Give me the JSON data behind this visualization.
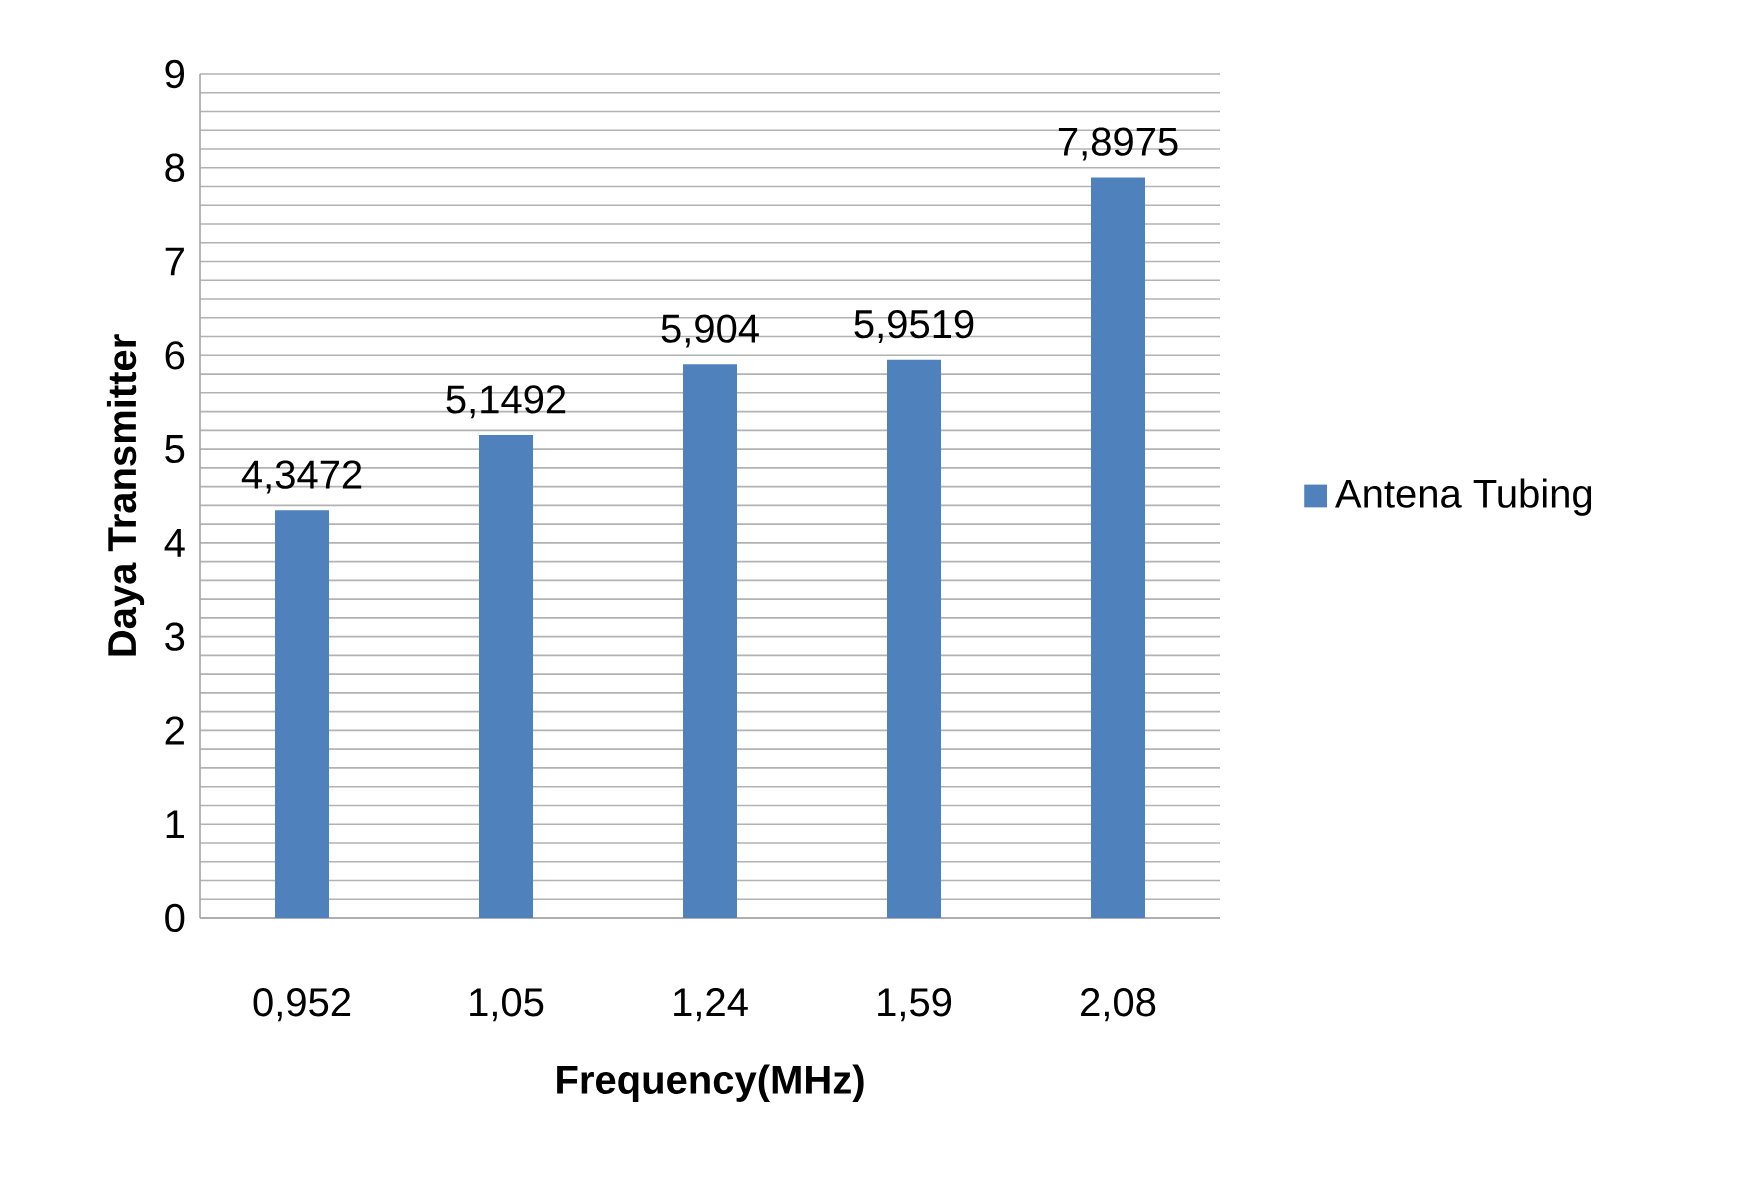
{
  "chart_data": {
    "type": "bar",
    "xlabel": "Frequency(MHz)",
    "ylabel": "Daya Transmitter",
    "categories": [
      "0,952",
      "1,05",
      "1,24",
      "1,59",
      "2,08"
    ],
    "series": [
      {
        "name": "Antena Tubing",
        "color": "#4f81bd",
        "values": [
          4.3472,
          5.1492,
          5.904,
          5.9519,
          7.8975
        ],
        "value_labels": [
          "4,3472",
          "5,1492",
          "5,904",
          "5,9519",
          "7,8975"
        ]
      }
    ],
    "ylim": [
      0,
      9
    ],
    "yticks": [
      0,
      1,
      2,
      3,
      4,
      5,
      6,
      7,
      8,
      9
    ],
    "grid": "y",
    "legend": "right"
  }
}
